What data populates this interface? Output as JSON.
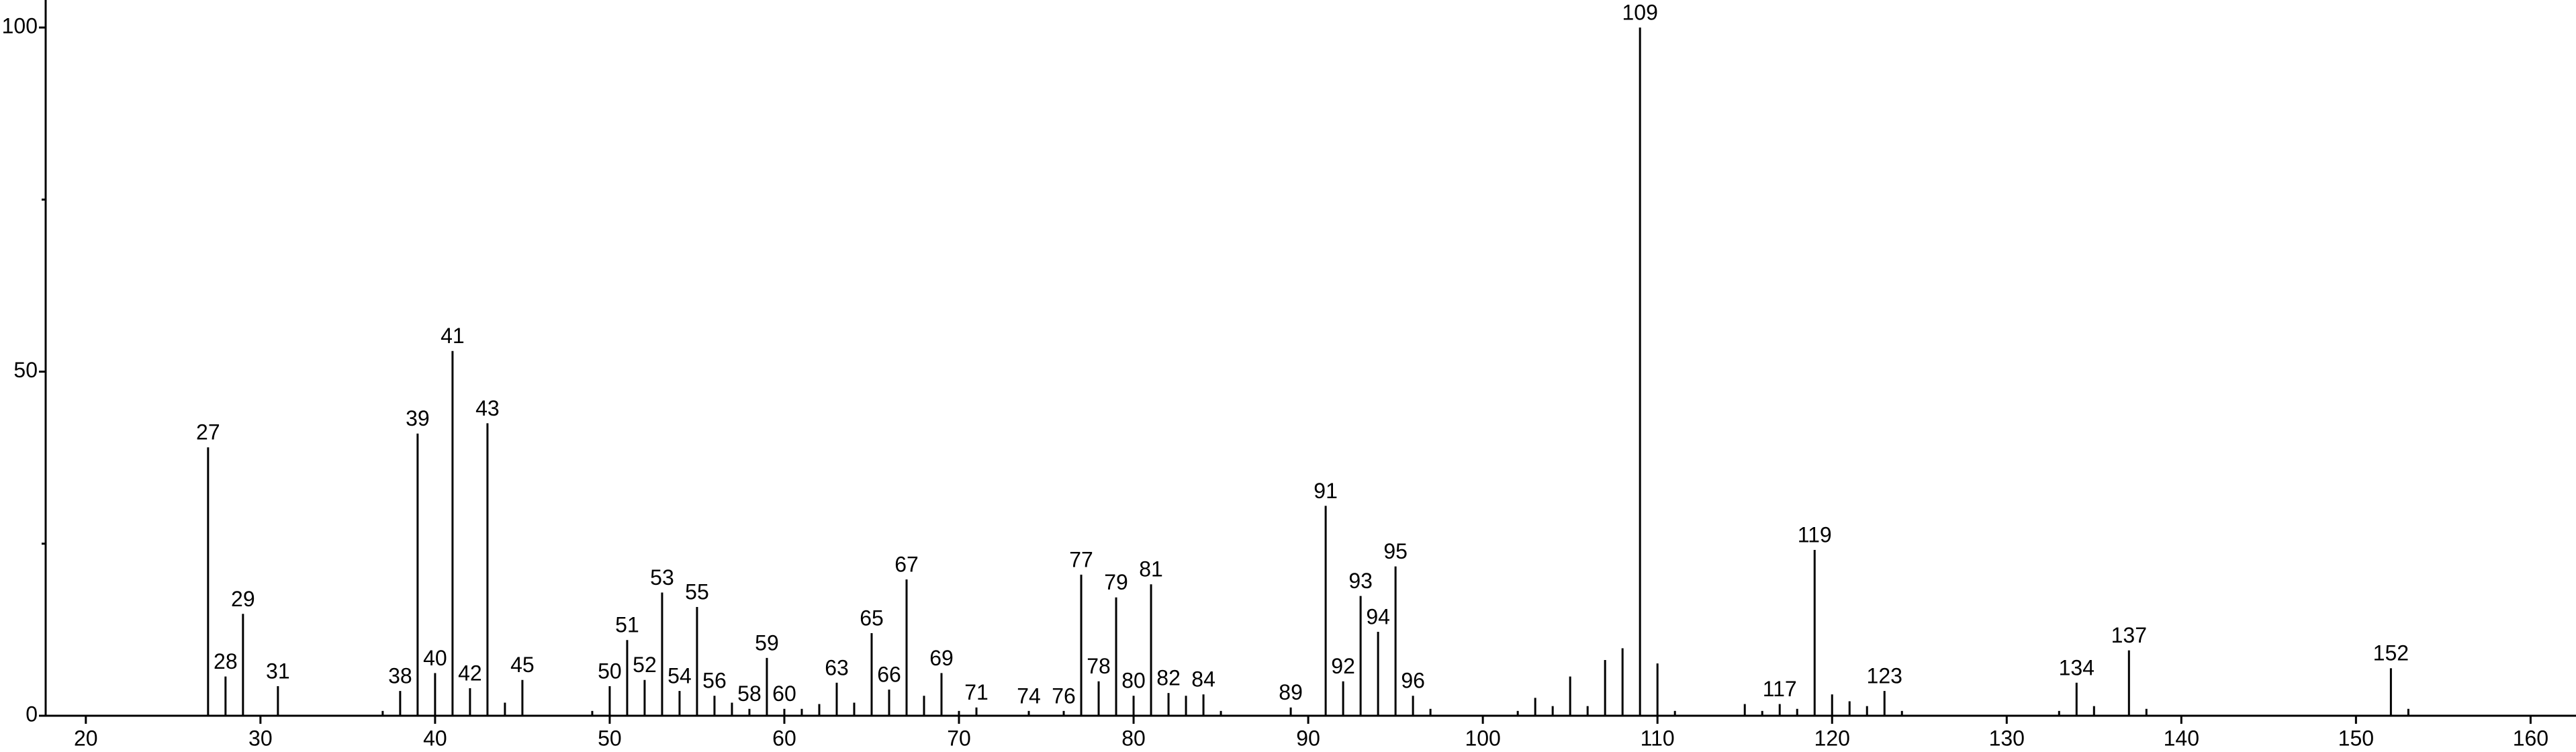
{
  "chart_data": {
    "type": "stem",
    "series": [
      {
        "name": "labeled peaks",
        "color": "#000000",
        "x": [
          27,
          28,
          29,
          31,
          38,
          39,
          40,
          41,
          42,
          43,
          45,
          50,
          51,
          52,
          53,
          54,
          55,
          56,
          58,
          59,
          60,
          63,
          65,
          66,
          67,
          69,
          71,
          74,
          76,
          77,
          78,
          79,
          80,
          81,
          82,
          84,
          89,
          91,
          92,
          93,
          94,
          95,
          96,
          109,
          117,
          119,
          123,
          134,
          137,
          152
        ],
        "values": [
          39,
          5.7,
          14.8,
          4.3,
          3.6,
          41,
          6.2,
          53,
          4,
          42.5,
          5.2,
          4.3,
          11,
          5.2,
          17.9,
          3.6,
          15.8,
          2.9,
          1,
          8.4,
          1,
          4.8,
          12,
          3.8,
          19.8,
          6.2,
          1.2,
          0.7,
          0.7,
          20.5,
          5,
          17.2,
          2.9,
          19.1,
          3.3,
          3.1,
          1.2,
          30.5,
          5,
          17.4,
          12.2,
          21.7,
          2.9,
          100,
          1.7,
          24.1,
          3.6,
          4.8,
          9.5,
          6.9
        ]
      },
      {
        "name": "unlabeled peaks",
        "color": "#000000",
        "x": [
          37,
          44,
          49,
          57,
          61,
          62,
          64,
          68,
          70,
          83,
          85,
          97,
          102,
          103,
          104,
          105,
          106,
          107,
          108,
          110,
          111,
          115,
          116,
          118,
          120,
          121,
          122,
          124,
          133,
          135,
          138,
          153
        ],
        "values": [
          0.7,
          1.9,
          0.7,
          1.9,
          1,
          1.7,
          1.9,
          2.9,
          0.7,
          2.9,
          0.7,
          1,
          0.7,
          2.6,
          1.4,
          5.7,
          1.4,
          8.1,
          9.8,
          7.6,
          0.7,
          1.7,
          0.7,
          1,
          3.1,
          2.1,
          1.4,
          0.7,
          0.7,
          1.4,
          1,
          1
        ]
      }
    ],
    "xlim": [
      17.7,
      162.6
    ],
    "xticks": [
      20,
      30,
      40,
      50,
      60,
      70,
      80,
      90,
      100,
      110,
      120,
      130,
      140,
      150,
      160
    ],
    "ylim": [
      0,
      104
    ],
    "yticks": [
      0,
      50,
      100
    ],
    "yminorticks": [
      25,
      75
    ]
  }
}
